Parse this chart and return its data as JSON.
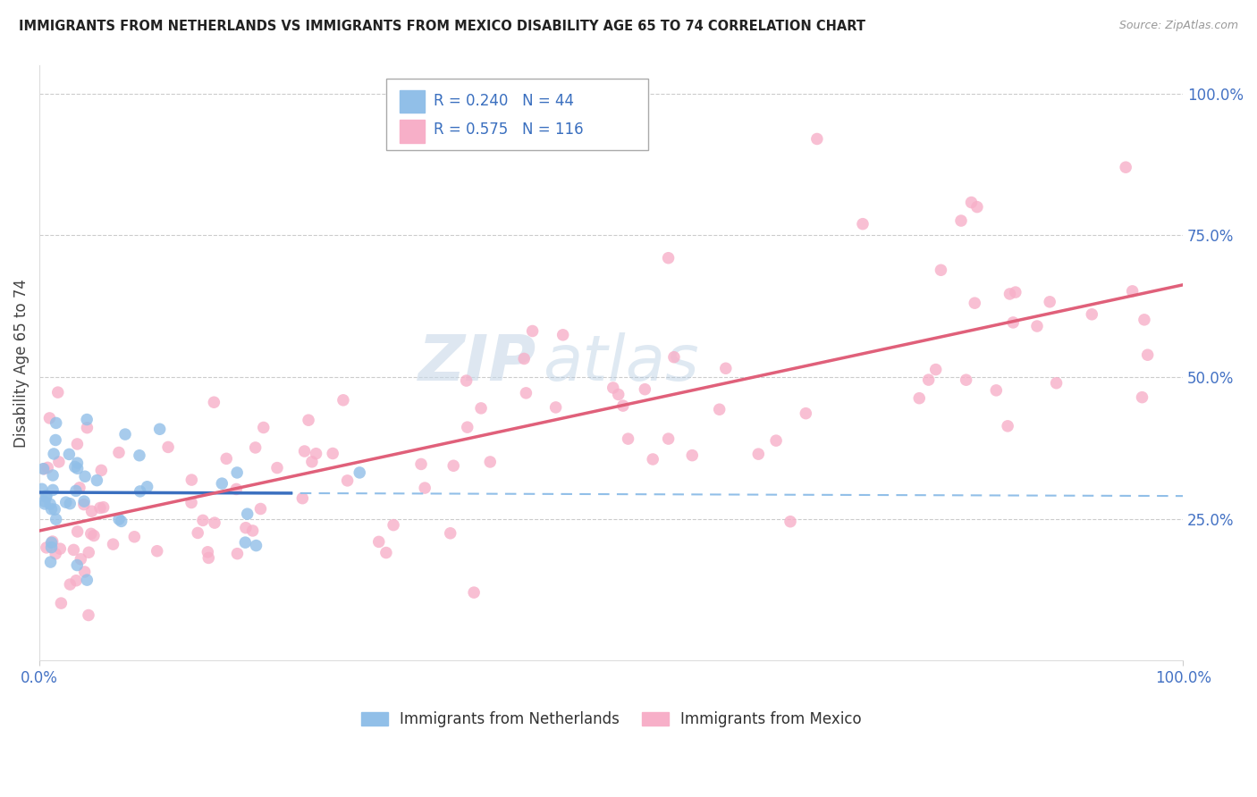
{
  "title": "IMMIGRANTS FROM NETHERLANDS VS IMMIGRANTS FROM MEXICO DISABILITY AGE 65 TO 74 CORRELATION CHART",
  "source": "Source: ZipAtlas.com",
  "ylabel": "Disability Age 65 to 74",
  "ylabel_right_ticks": [
    "100.0%",
    "75.0%",
    "50.0%",
    "25.0%"
  ],
  "ylabel_right_vals": [
    1.0,
    0.75,
    0.5,
    0.25
  ],
  "xlim": [
    0.0,
    1.0
  ],
  "ylim": [
    0.0,
    1.05
  ],
  "legend_nl_r": "0.240",
  "legend_nl_n": "44",
  "legend_mx_r": "0.575",
  "legend_mx_n": "116",
  "color_nl": "#91bfe8",
  "color_mx": "#f7afc8",
  "trendline_nl_color": "#3a6fbf",
  "trendline_mx_color": "#e0607a",
  "trendline_dashed_color": "#91bfe8",
  "watermark_zip": "ZIP",
  "watermark_atlas": "atlas",
  "background_color": "#ffffff",
  "grid_color": "#cccccc",
  "legend_r_color": "#3a6fbf",
  "legend_n_color": "#3a6fbf",
  "bottom_legend_nl": "Immigrants from Netherlands",
  "bottom_legend_mx": "Immigrants from Mexico"
}
